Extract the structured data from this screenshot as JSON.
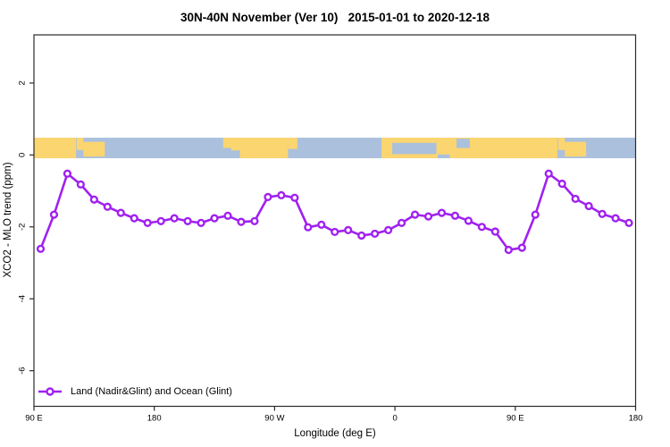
{
  "chart_data": {
    "type": "line",
    "title": "30N-40N November (Ver 10)   2015-01-01 to 2020-12-18",
    "xlabel": "Longitude (deg E)",
    "ylabel": "XCO2 - MLO trend (ppm)",
    "xlim": [
      90,
      540
    ],
    "ylim": [
      -6.99,
      3.34
    ],
    "grid": false,
    "frame_color": "#2b2b2b",
    "legend_position": "bottom-left",
    "x_ticks": [
      {
        "value": 90,
        "label": "90 E"
      },
      {
        "value": 180,
        "label": "180"
      },
      {
        "value": 270,
        "label": "90 W"
      },
      {
        "value": 360,
        "label": "0"
      },
      {
        "value": 450,
        "label": "90 E"
      },
      {
        "value": 540,
        "label": "180"
      }
    ],
    "y_ticks": [
      {
        "value": 2,
        "label": "2"
      },
      {
        "value": 0,
        "label": "0"
      },
      {
        "value": -2,
        "label": "-2"
      },
      {
        "value": -4,
        "label": "-4"
      },
      {
        "value": -6,
        "label": "-6"
      }
    ],
    "series": [
      {
        "name": "Land (Nadir&Glint) and Ocean (Glint)",
        "color": "#A020F0",
        "marker": "open-circle",
        "x": [
          95,
          105,
          115,
          125,
          135,
          145,
          155,
          165,
          175,
          185,
          195,
          205,
          215,
          225,
          235,
          245,
          255,
          265,
          275,
          285,
          295,
          305,
          315,
          325,
          335,
          345,
          355,
          365,
          375,
          385,
          395,
          405,
          415,
          425,
          435,
          445,
          455,
          465,
          475,
          485,
          495,
          505,
          515,
          525,
          535
        ],
        "y": [
          -2.61,
          -1.66,
          -0.52,
          -0.82,
          -1.24,
          -1.44,
          -1.61,
          -1.76,
          -1.89,
          -1.84,
          -1.76,
          -1.84,
          -1.89,
          -1.76,
          -1.69,
          -1.86,
          -1.84,
          -1.17,
          -1.12,
          -1.19,
          -2.01,
          -1.94,
          -2.14,
          -2.09,
          -2.24,
          -2.19,
          -2.09,
          -1.89,
          -1.66,
          -1.71,
          -1.61,
          -1.69,
          -1.83,
          -2.0,
          -2.13,
          -2.64,
          -2.58,
          -1.66,
          -0.52,
          -0.8,
          -1.22,
          -1.42,
          -1.64,
          -1.76,
          -1.89
        ]
      }
    ],
    "map_band": {
      "description": "30N-40N latitude world-map strip (land/ocean) spanning the x-axis",
      "top_value": 0.48,
      "bottom_value": -0.09,
      "ocean_color": "#AAC0DD",
      "land_color": "#FBD56F",
      "land_segments": [
        [
          90,
          121.5,
          0,
          1
        ],
        [
          122,
          127,
          0,
          0.6
        ],
        [
          127,
          143,
          0.2,
          0.92
        ],
        [
          231.5,
          244,
          0,
          0.62
        ],
        [
          244,
          280,
          0,
          1
        ],
        [
          280,
          287,
          0,
          0.55
        ],
        [
          350,
          481.5,
          0,
          1
        ],
        [
          482,
          487,
          0,
          0.6
        ],
        [
          487,
          503,
          0.2,
          0.92
        ]
      ],
      "ocean_cutouts": [
        [
          231.5,
          237.5,
          0.5,
          1
        ],
        [
          358,
          391,
          0.25,
          0.8
        ],
        [
          392,
          401,
          0.82,
          1
        ],
        [
          406,
          416,
          0.05,
          0.5
        ]
      ]
    }
  }
}
